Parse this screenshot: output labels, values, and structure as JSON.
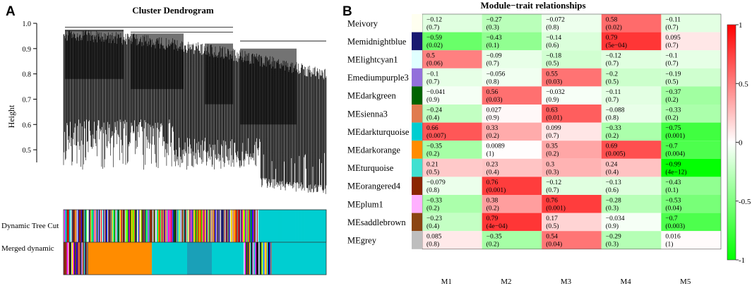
{
  "panel_a": {
    "letter": "A",
    "title": "Cluster Dendrogram",
    "ylabel": "Height",
    "yticks": [
      "1.0",
      "0.9",
      "0.8",
      "0.7",
      "0.6",
      "0.5"
    ],
    "row_labels": [
      "Dynamic Tree Cut",
      "Merged dynamic"
    ]
  },
  "panel_b": {
    "letter": "B",
    "title": "Module−trait relationships"
  },
  "chart_data": [
    {
      "type": "dendrogram",
      "title": "Cluster Dendrogram",
      "ylabel": "Height",
      "ylim": [
        0.4,
        1.0
      ],
      "yticks": [
        1.0,
        0.9,
        0.8,
        0.7,
        0.6,
        0.5
      ],
      "color_bars": [
        "Dynamic Tree Cut",
        "Merged dynamic"
      ]
    },
    {
      "type": "heatmap",
      "title": "Module−trait relationships",
      "x": [
        "M1",
        "M2",
        "M3",
        "M4",
        "M5"
      ],
      "y": [
        "Meivory",
        "Memidnightblue",
        "MElightcyan1",
        "Emediumpurple3",
        "MEdarkgreen",
        "MEsienna3",
        "MEdarkturquoise",
        "MEdarkorange",
        "MEturquoise",
        "MEorangered4",
        "MEplum1",
        "MEsaddlebrown",
        "MEgrey"
      ],
      "module_colors": [
        "#fffff0",
        "#191970",
        "#e0ffff",
        "#9370db",
        "#006400",
        "#e07b4f",
        "#00ced1",
        "#ff8c00",
        "#40e0d0",
        "#8b2500",
        "#ffb0ff",
        "#8b4513",
        "#bebebe"
      ],
      "correlations": [
        [
          -0.12,
          -0.27,
          -0.072,
          0.58,
          -0.11
        ],
        [
          -0.59,
          -0.43,
          -0.14,
          0.79,
          0.095
        ],
        [
          0.5,
          -0.09,
          -0.18,
          -0.12,
          -0.1
        ],
        [
          -0.1,
          -0.056,
          0.55,
          -0.2,
          -0.19
        ],
        [
          -0.041,
          0.56,
          -0.032,
          -0.11,
          -0.37
        ],
        [
          -0.24,
          0.027,
          0.63,
          -0.088,
          -0.33
        ],
        [
          0.66,
          0.33,
          0.099,
          -0.33,
          -0.75
        ],
        [
          -0.35,
          0.0089,
          0.35,
          0.69,
          -0.7
        ],
        [
          0.21,
          0.23,
          0.3,
          0.24,
          -0.99
        ],
        [
          -0.079,
          0.76,
          -0.12,
          -0.13,
          -0.43
        ],
        [
          -0.33,
          0.38,
          0.76,
          -0.28,
          -0.53
        ],
        [
          -0.23,
          0.79,
          0.17,
          -0.034,
          -0.7
        ],
        [
          0.085,
          -0.35,
          0.54,
          -0.29,
          0.016
        ]
      ],
      "cell_labels": [
        [
          [
            "−0.12",
            "(0.7)"
          ],
          [
            "−0.27",
            "(0.3)"
          ],
          [
            "−0.072",
            "(0.8)"
          ],
          [
            "0.58",
            "(0.02)"
          ],
          [
            "−0.11",
            "(0.7)"
          ]
        ],
        [
          [
            "−0.59",
            "(0.02)"
          ],
          [
            "−0.43",
            "(0.1)"
          ],
          [
            "−0.14",
            "(0.6)"
          ],
          [
            "0.79",
            "(5e−04)"
          ],
          [
            "0.095",
            "(0.7)"
          ]
        ],
        [
          [
            "0.5",
            "(0.06)"
          ],
          [
            "−0.09",
            "(0.7)"
          ],
          [
            "−0.18",
            "(0.5)"
          ],
          [
            "−0.12",
            "(0.7)"
          ],
          [
            "−0.1",
            "(0.7)"
          ]
        ],
        [
          [
            "−0.1",
            "(0.7)"
          ],
          [
            "−0.056",
            "(0.8)"
          ],
          [
            "0.55",
            "(0.03)"
          ],
          [
            "−0.2",
            "(0.5)"
          ],
          [
            "−0.19",
            "(0.5)"
          ]
        ],
        [
          [
            "−0.041",
            "(0.9)"
          ],
          [
            "0.56",
            "(0.03)"
          ],
          [
            "−0.032",
            "(0.9)"
          ],
          [
            "−0.11",
            "(0.7)"
          ],
          [
            "−0.37",
            "(0.2)"
          ]
        ],
        [
          [
            "−0.24",
            "(0.4)"
          ],
          [
            "0.027",
            "(0.9)"
          ],
          [
            "0.63",
            "(0.01)"
          ],
          [
            "−0.088",
            "(0.8)"
          ],
          [
            "−0.33",
            "(0.2)"
          ]
        ],
        [
          [
            "0.66",
            "(0.007)"
          ],
          [
            "0.33",
            "(0.2)"
          ],
          [
            "0.099",
            "(0.7)"
          ],
          [
            "−0.33",
            "(0.2)"
          ],
          [
            "−0.75",
            "(0.001)"
          ]
        ],
        [
          [
            "−0.35",
            "(0.2)"
          ],
          [
            "0.0089",
            "(1)"
          ],
          [
            "0.35",
            "(0.2)"
          ],
          [
            "0.69",
            "(0.005)"
          ],
          [
            "−0.7",
            "(0.004)"
          ]
        ],
        [
          [
            "0.21",
            "(0.5)"
          ],
          [
            "0.23",
            "(0.4)"
          ],
          [
            "0.3",
            "(0.3)"
          ],
          [
            "0.24",
            "(0.4)"
          ],
          [
            "−0.99",
            "(4e−12)"
          ]
        ],
        [
          [
            "−0.079",
            "(0.8)"
          ],
          [
            "0.76",
            "(0.001)"
          ],
          [
            "−0.12",
            "(0.7)"
          ],
          [
            "−0.13",
            "(0.6)"
          ],
          [
            "−0.43",
            "(0.1)"
          ]
        ],
        [
          [
            "−0.33",
            "(0.2)"
          ],
          [
            "0.38",
            "(0.2)"
          ],
          [
            "0.76",
            "(0.001)"
          ],
          [
            "−0.28",
            "(0.3)"
          ],
          [
            "−0.53",
            "(0.04)"
          ]
        ],
        [
          [
            "−0.23",
            "(0.4)"
          ],
          [
            "0.79",
            "(4e−04)"
          ],
          [
            "0.17",
            "(0.5)"
          ],
          [
            "−0.034",
            "(0.9)"
          ],
          [
            "−0.7",
            "(0.003)"
          ]
        ],
        [
          [
            "0.085",
            "(0.8)"
          ],
          [
            "−0.35",
            "(0.2)"
          ],
          [
            "0.54",
            "(0.04)"
          ],
          [
            "−0.29",
            "(0.3)"
          ],
          [
            "0.016",
            "(1)"
          ]
        ]
      ],
      "colorbar": {
        "range": [
          -1,
          1
        ],
        "tick_values": [
          1,
          0.5,
          0,
          -0.5,
          -1
        ],
        "tick_labels": [
          "1",
          "0.5",
          "0",
          "-0.5",
          "-1"
        ],
        "low_color": "#00ff00",
        "mid_color": "#ffffff",
        "high_color": "#ff0000"
      }
    }
  ]
}
